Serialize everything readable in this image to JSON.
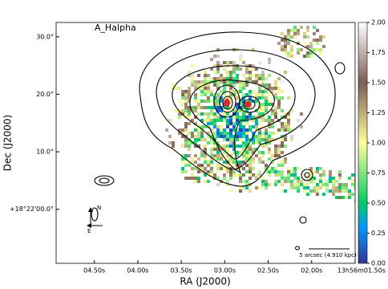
{
  "chart_data": {
    "type": "image",
    "title": "A_Halpha",
    "x_label": "RA (J2000)",
    "y_label": "Dec (J2000)",
    "xlim": [
      4.94,
      1.5
    ],
    "xticks": [
      {
        "value": 4.5,
        "label": "04.50s"
      },
      {
        "value": 4.0,
        "label": "04.00s"
      },
      {
        "value": 3.5,
        "label": "03.50s"
      },
      {
        "value": 3.0,
        "label": "03.00s"
      },
      {
        "value": 2.5,
        "label": "02.50s"
      },
      {
        "value": 2.0,
        "label": "02.00s"
      },
      {
        "value": 1.5,
        "label": "13h56m01.50s"
      }
    ],
    "ylim": [
      -9.4,
      32.5
    ],
    "yticks": [
      {
        "value": 30,
        "label": "30.0°"
      },
      {
        "value": 20,
        "label": "20.0°"
      },
      {
        "value": 10,
        "label": "10.0°"
      },
      {
        "value": 0,
        "label": "+18°22'00.0°"
      }
    ],
    "clim": [
      0,
      2
    ],
    "colorbar_ticks": [
      {
        "value": 0,
        "label": "0.00"
      },
      {
        "value": 0.25,
        "label": "0.25"
      },
      {
        "value": 0.5,
        "label": "0.50"
      },
      {
        "value": 0.75,
        "label": "0.75"
      },
      {
        "value": 1.0,
        "label": "1.00"
      },
      {
        "value": 1.25,
        "label": "1.25"
      },
      {
        "value": 1.5,
        "label": "1.50"
      },
      {
        "value": 1.75,
        "label": "1.75"
      },
      {
        "value": 2.0,
        "label": "2.00"
      }
    ],
    "colormap_stops": [
      {
        "value": 0,
        "color": "#333399"
      },
      {
        "value": 0.3,
        "color": "#0099ff"
      },
      {
        "value": 0.5,
        "color": "#00cc66"
      },
      {
        "value": 1.0,
        "color": "#ffff99"
      },
      {
        "value": 1.5,
        "color": "#805c54"
      },
      {
        "value": 2.0,
        "color": "#ffffff"
      }
    ],
    "compass": {
      "north": "N",
      "east": "E"
    },
    "scale_bar": "5 arcsec (4.910 kpc)"
  }
}
